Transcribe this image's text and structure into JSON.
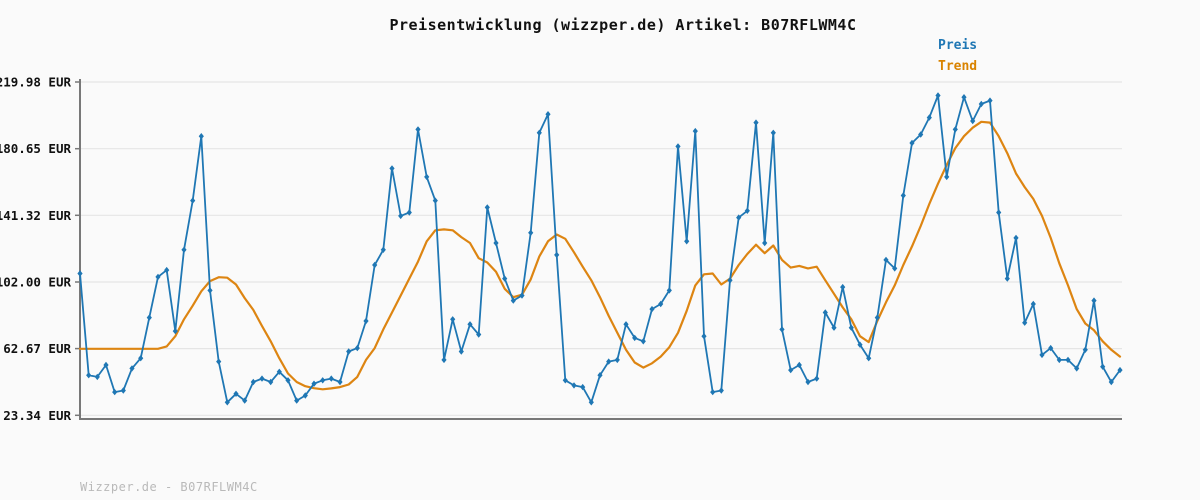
{
  "title": "Preisentwicklung (wizzper.de) Artikel: B07RFLWM4C",
  "footer_watermark": "Wizzper.de - B07RFLWM4C",
  "colors": {
    "background": "#fafafa",
    "grid": "#e5e5e5",
    "axis": "#787878",
    "tick_text": "#111111",
    "price": "#1f77b4",
    "trend": "#dd8512"
  },
  "legend": {
    "items": [
      {
        "label": "Preis",
        "color": "#1f77b4"
      },
      {
        "label": "Trend",
        "color": "#d98300"
      }
    ]
  },
  "chart_data": {
    "type": "line",
    "title": "Preisentwicklung (wizzper.de) Artikel: B07RFLWM4C",
    "xlabel": "",
    "ylabel": "EUR",
    "x_axis_tick_labels": [],
    "y_tick_labels": [
      "219.98 EUR",
      "180.65 EUR",
      "141.32 EUR",
      "102.00 EUR",
      "62.67 EUR",
      "23.34 EUR"
    ],
    "y_ticks": [
      219.98,
      180.65,
      141.32,
      102.0,
      62.67,
      23.34
    ],
    "ylim": [
      23.34,
      219.98
    ],
    "grid": "horizontal",
    "legend_position": "top-right",
    "series": [
      {
        "name": "Preis",
        "color": "#1f77b4",
        "marker": "diamond",
        "values": [
          107,
          47,
          46,
          53,
          37,
          38,
          51,
          57,
          81,
          105,
          109,
          73,
          121,
          150,
          188,
          97,
          55,
          31,
          36,
          32,
          43,
          45,
          43,
          49,
          44,
          32,
          35,
          42,
          44,
          45,
          43,
          61,
          63,
          79,
          112,
          121,
          169,
          141,
          143,
          192,
          164,
          150,
          56,
          80,
          61,
          77,
          71,
          146,
          125,
          104,
          91,
          94,
          131,
          190,
          201,
          118,
          44,
          41,
          40,
          31,
          47,
          55,
          56,
          77,
          69,
          67,
          86,
          89,
          97,
          182,
          126,
          191,
          70,
          37,
          38,
          103,
          140,
          144,
          196,
          125,
          190,
          74,
          50,
          53,
          43,
          45,
          84,
          75,
          99,
          75,
          65,
          57,
          81,
          115,
          110,
          153,
          184,
          189,
          199,
          212,
          164,
          192,
          211,
          197,
          207,
          209,
          143,
          104,
          128,
          78,
          89,
          59,
          63,
          56,
          56,
          51,
          62,
          91,
          52,
          43,
          50
        ]
      },
      {
        "name": "Trend",
        "color": "#dd8512",
        "marker": "none",
        "values": [
          62.6,
          62.6,
          62.6,
          62.6,
          62.6,
          62.6,
          62.6,
          62.6,
          62.6,
          62.6,
          64,
          70,
          80,
          88,
          96.5,
          102.5,
          104.8,
          104.5,
          100.5,
          92.5,
          85.5,
          76,
          67,
          57,
          48,
          43,
          40.5,
          39.3,
          38.7,
          39.2,
          40,
          41.5,
          46,
          56,
          63,
          74,
          84,
          94,
          104,
          114,
          126,
          132.5,
          133,
          132.5,
          128.5,
          125,
          116,
          113.5,
          108,
          98,
          93,
          94.5,
          103.5,
          117,
          126,
          130,
          127.5,
          119.5,
          111,
          103,
          93,
          82,
          72,
          62,
          54.5,
          51.5,
          54,
          58,
          63.5,
          72,
          85,
          100,
          106.5,
          107,
          100.5,
          104,
          112,
          118.5,
          124,
          119,
          123.5,
          115,
          110.5,
          111.5,
          110,
          111,
          103,
          95,
          87,
          80,
          70,
          66.5,
          79,
          90,
          100,
          112,
          123,
          135,
          148,
          160,
          171,
          181,
          188,
          193,
          196.5,
          196,
          188,
          178,
          166,
          158,
          151,
          141,
          128,
          113,
          100,
          86,
          77.5,
          73.5,
          67,
          62,
          58
        ]
      }
    ]
  }
}
